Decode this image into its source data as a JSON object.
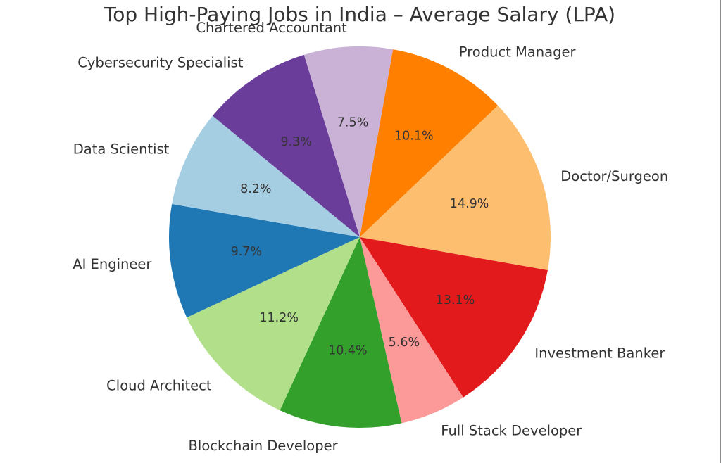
{
  "window": {
    "right_edge_color": "#8c8c8c",
    "background_color": "#ffffff"
  },
  "chart_data": {
    "type": "pie",
    "title": "Top High-Paying Jobs in India – Average Salary (LPA)",
    "background_color": "#ffffff",
    "text_color": "#333333",
    "legend": "none",
    "grid": "off",
    "start_angle": 80,
    "direction": "clockwise",
    "label_distance": 1.1,
    "pct_distance": 0.6,
    "slices": [
      {
        "label": "Product Manager",
        "pct": 10.1,
        "pct_label": "10.1%",
        "color": "#ff7f00"
      },
      {
        "label": "Doctor/Surgeon",
        "pct": 14.9,
        "pct_label": "14.9%",
        "color": "#fdbf6f"
      },
      {
        "label": "Investment Banker",
        "pct": 13.1,
        "pct_label": "13.1%",
        "color": "#e31a1c"
      },
      {
        "label": "Full Stack Developer",
        "pct": 5.6,
        "pct_label": "5.6%",
        "color": "#fb9a99"
      },
      {
        "label": "Blockchain Developer",
        "pct": 10.4,
        "pct_label": "10.4%",
        "color": "#33a02c"
      },
      {
        "label": "Cloud Architect",
        "pct": 11.2,
        "pct_label": "11.2%",
        "color": "#b2df8a"
      },
      {
        "label": "AI Engineer",
        "pct": 9.7,
        "pct_label": "9.7%",
        "color": "#1f78b4"
      },
      {
        "label": "Data Scientist",
        "pct": 8.2,
        "pct_label": "8.2%",
        "color": "#a6cee3"
      },
      {
        "label": "Cybersecurity Specialist",
        "pct": 9.3,
        "pct_label": "9.3%",
        "color": "#6a3d9a"
      },
      {
        "label": "Chartered Accountant",
        "pct": 7.5,
        "pct_label": "7.5%",
        "color": "#cab2d6"
      }
    ]
  }
}
